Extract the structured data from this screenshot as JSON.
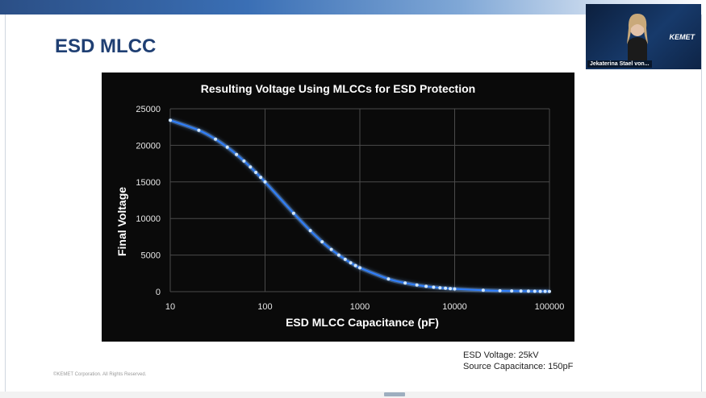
{
  "slide": {
    "title": "ESD MLCC",
    "caption_lines": [
      "ESD Voltage: 25kV",
      "Source Capacitance: 150pF"
    ],
    "footer": "©KEMET Corporation. All Rights Reserved."
  },
  "video": {
    "participant_name": "Jekaterina Stael von...",
    "logo_text": "KEMET"
  },
  "colors": {
    "title": "#1f3f73",
    "chart_bg": "#0a0a0a",
    "series_line": "#2f7fff",
    "series_glow": "#6fb0ff"
  },
  "chart_data": {
    "type": "line",
    "title": "Resulting Voltage Using MLCCs for ESD Protection",
    "xlabel": "ESD MLCC Capacitance (pF)",
    "ylabel": "Final Voltage",
    "x_scale": "log",
    "xlim": [
      10,
      100000
    ],
    "ylim": [
      0,
      25000
    ],
    "x_ticks": [
      10,
      100,
      1000,
      10000,
      100000
    ],
    "y_ticks": [
      0,
      5000,
      10000,
      15000,
      20000,
      25000
    ],
    "x_tick_labels": [
      "10",
      "100",
      "1000",
      "10000",
      "100000"
    ],
    "y_tick_labels": [
      "0",
      "5000",
      "10000",
      "15000",
      "20000",
      "25000"
    ],
    "grid": true,
    "series": [
      {
        "name": "Final Voltage",
        "x": [
          10,
          20,
          30,
          40,
          50,
          60,
          70,
          80,
          90,
          100,
          200,
          300,
          400,
          500,
          600,
          700,
          800,
          900,
          1000,
          2000,
          3000,
          4000,
          5000,
          6000,
          7000,
          8000,
          9000,
          10000,
          20000,
          30000,
          40000,
          50000,
          60000,
          70000,
          80000,
          90000,
          100000
        ],
        "values": [
          23438,
          22059,
          20833,
          19737,
          18750,
          17857,
          17045,
          16304,
          15625,
          15000,
          10714,
          8333,
          6818,
          5769,
          5000,
          4412,
          3947,
          3571,
          3261,
          1744,
          1190,
          904,
          728,
          610,
          524,
          460,
          410,
          370,
          187,
          125,
          94,
          75,
          62,
          54,
          47,
          42,
          37
        ]
      }
    ]
  }
}
